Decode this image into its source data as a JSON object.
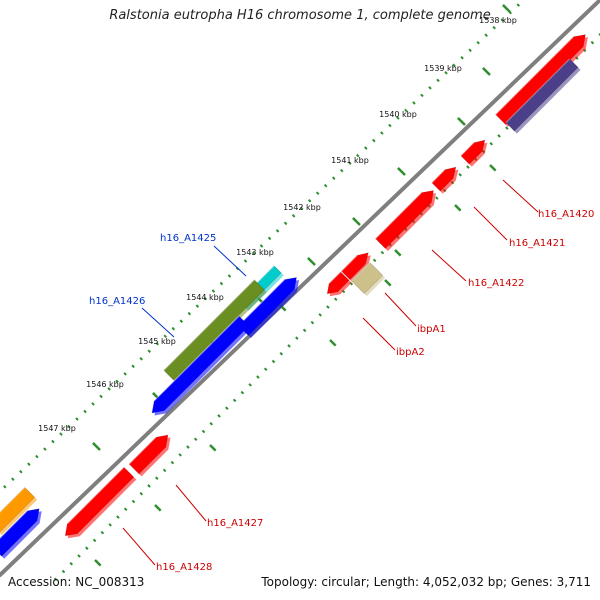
{
  "title": "Ralstonia eutropha H16 chromosome 1, complete genome",
  "footer": {
    "accession_label": "Accession: NC_008313",
    "topology_text": "Topology: circular; Length: 4,052,032 bp; Genes: 3,711"
  },
  "colors": {
    "backbone": "#7f7f7f",
    "tick_green": "#2f8f2f",
    "forward_red": "#ff0000",
    "reverse_blue": "#0000ff",
    "olive": "#6b8e23",
    "cyan": "#00cccc",
    "tan": "#cdc08a",
    "purple": "#4b3f8a",
    "orange": "#ff9900",
    "label_red": "#cc0000",
    "label_blue": "#0033cc"
  },
  "ticks": [
    "1538 kbp",
    "1539 kbp",
    "1540 kbp",
    "1541 kbp",
    "1542 kbp",
    "1543 kbp",
    "1544 kbp",
    "1545 kbp",
    "1546 kbp",
    "1547 kbp"
  ],
  "genes": {
    "red": [
      "h16_A1420",
      "h16_A1421",
      "h16_A1422",
      "h16_A1427",
      "h16_A1428"
    ],
    "special": [
      "ibpA1",
      "ibpA2"
    ],
    "blue": [
      "h16_A1425",
      "h16_A1426"
    ]
  }
}
